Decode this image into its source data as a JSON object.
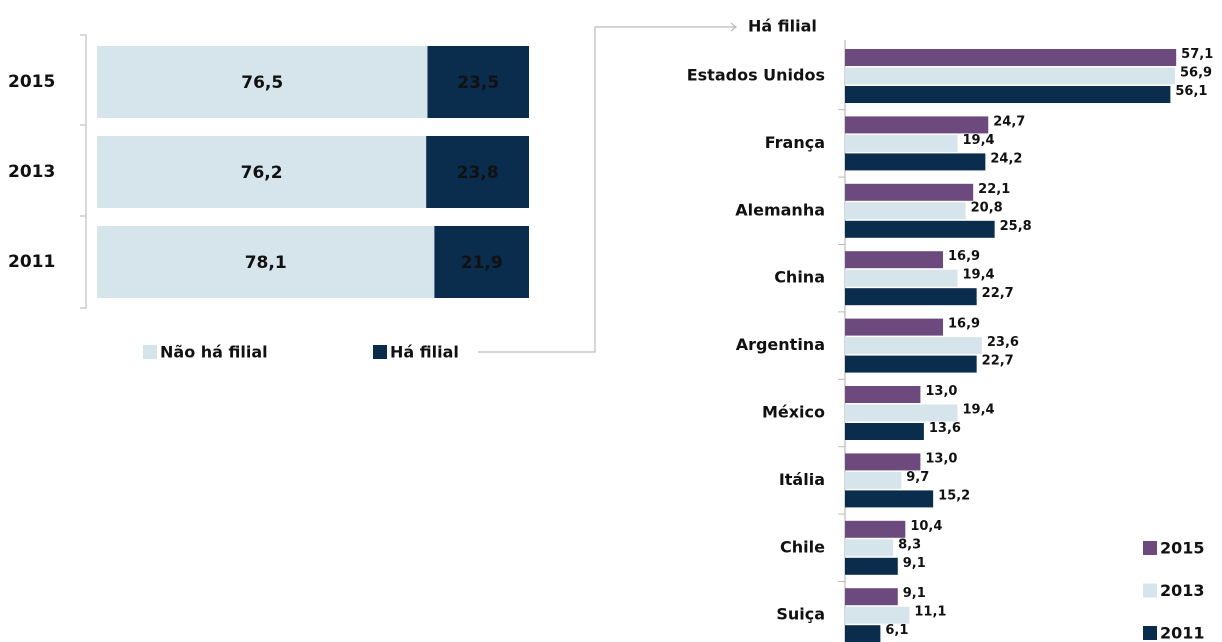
{
  "chart_data": [
    {
      "type": "bar",
      "orientation": "horizontal",
      "stacked": true,
      "legend": "bottom",
      "categories": [
        "2015",
        "2013",
        "2011"
      ],
      "xlim": [
        0,
        100
      ],
      "series": [
        {
          "name": "Não há filial",
          "color": "#d6e4ec",
          "values": [
            76.5,
            76.2,
            78.1
          ],
          "value_labels": [
            "76,5",
            "76,2",
            "78,1"
          ]
        },
        {
          "name": "Há filial",
          "color": "#0a2d4e",
          "values": [
            23.5,
            23.8,
            21.9
          ],
          "value_labels": [
            "23,5",
            "23,8",
            "21,9"
          ]
        }
      ]
    },
    {
      "type": "bar",
      "orientation": "horizontal",
      "stacked": false,
      "legend": "lower right",
      "title": "Há filial",
      "categories": [
        "Estados Unidos",
        "França",
        "Alemanha",
        "China",
        "Argentina",
        "México",
        "Itália",
        "Chile",
        "Suiça"
      ],
      "xlim": [
        0,
        60
      ],
      "series": [
        {
          "name": "2015",
          "color": "#6d4a7e",
          "values": [
            57.1,
            24.7,
            22.1,
            16.9,
            16.9,
            13.0,
            13.0,
            10.4,
            9.1
          ],
          "value_labels": [
            "57,1",
            "24,7",
            "22,1",
            "16,9",
            "16,9",
            "13,0",
            "13,0",
            "10,4",
            "9,1"
          ]
        },
        {
          "name": "2013",
          "color": "#d6e4ec",
          "values": [
            56.9,
            19.4,
            20.8,
            19.4,
            23.6,
            19.4,
            9.7,
            8.3,
            11.1
          ],
          "value_labels": [
            "56,9",
            "19,4",
            "20,8",
            "19,4",
            "23,6",
            "19,4",
            "9,7",
            "8,3",
            "11,1"
          ]
        },
        {
          "name": "2011",
          "color": "#0a2d4e",
          "values": [
            56.1,
            24.2,
            25.8,
            22.7,
            22.7,
            13.6,
            15.2,
            9.1,
            6.1
          ],
          "value_labels": [
            "56,1",
            "24,2",
            "25,8",
            "22,7",
            "22,7",
            "13,6",
            "15,2",
            "9,1",
            "6,1"
          ]
        }
      ]
    }
  ]
}
